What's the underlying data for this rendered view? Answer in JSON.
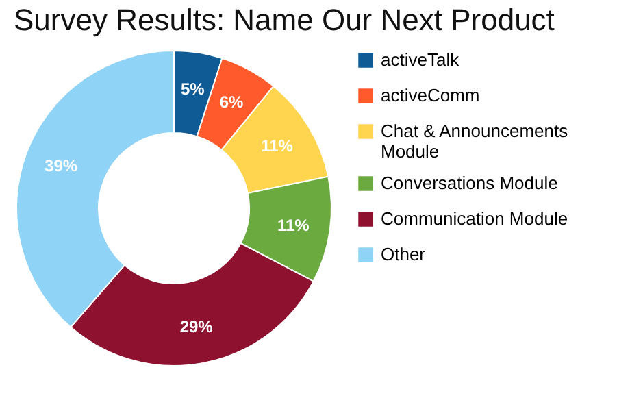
{
  "chart_data": {
    "type": "donut",
    "title": "Survey Results: Name Our Next Product",
    "categories": [
      "activeTalk",
      "activeComm",
      "Chat & Announcements Module",
      "Conversations Module",
      "Communication Module",
      "Other"
    ],
    "values": [
      5,
      6,
      11,
      11,
      29,
      39
    ],
    "value_labels": [
      "5%",
      "6%",
      "11%",
      "11%",
      "29%",
      "39%"
    ],
    "colors": [
      "#0f5b96",
      "#ff5a2b",
      "#ffd44f",
      "#6aaa3f",
      "#8e1230",
      "#8fd3f6"
    ],
    "legend": "right"
  }
}
